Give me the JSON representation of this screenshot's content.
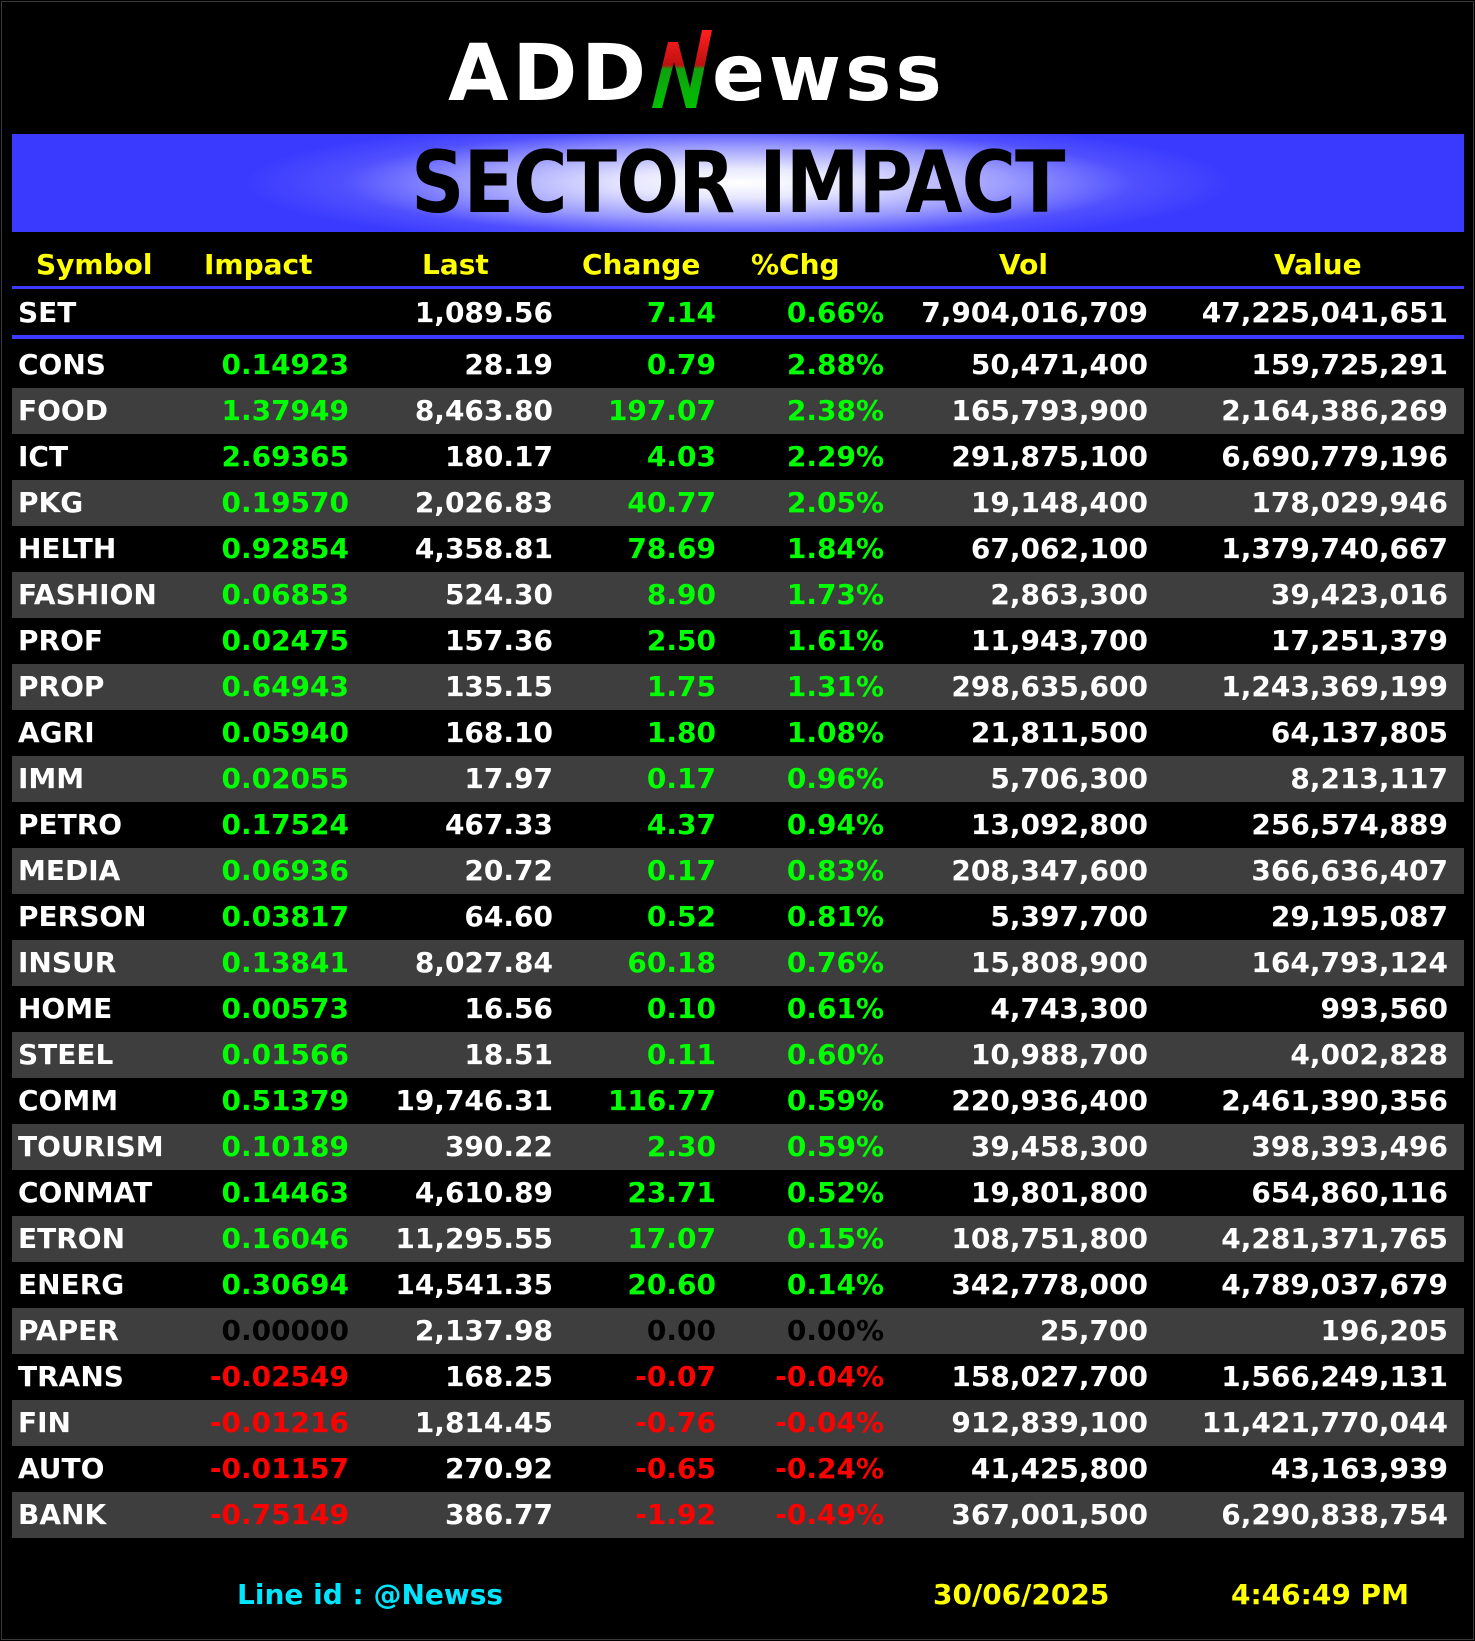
{
  "logo": {
    "text_left": "ADD",
    "text_right": "ewss"
  },
  "banner": {
    "title": "SECTOR IMPACT"
  },
  "header": {
    "symbol": "Symbol",
    "impact": "Impact",
    "last": "Last",
    "change": "Change",
    "pct": "%Chg",
    "vol": "Vol",
    "value": "Value"
  },
  "set_row": {
    "symbol": "SET",
    "impact": "",
    "last": "1,089.56",
    "change": "7.14",
    "pct": "0.66%",
    "vol": "7,904,016,709",
    "value": "47,225,041,651",
    "direction": "pos"
  },
  "rows": [
    {
      "symbol": "CONS",
      "impact": "0.14923",
      "last": "28.19",
      "change": "0.79",
      "pct": "2.88%",
      "vol": "50,471,400",
      "value": "159,725,291",
      "direction": "pos"
    },
    {
      "symbol": "FOOD",
      "impact": "1.37949",
      "last": "8,463.80",
      "change": "197.07",
      "pct": "2.38%",
      "vol": "165,793,900",
      "value": "2,164,386,269",
      "direction": "pos"
    },
    {
      "symbol": "ICT",
      "impact": "2.69365",
      "last": "180.17",
      "change": "4.03",
      "pct": "2.29%",
      "vol": "291,875,100",
      "value": "6,690,779,196",
      "direction": "pos"
    },
    {
      "symbol": "PKG",
      "impact": "0.19570",
      "last": "2,026.83",
      "change": "40.77",
      "pct": "2.05%",
      "vol": "19,148,400",
      "value": "178,029,946",
      "direction": "pos"
    },
    {
      "symbol": "HELTH",
      "impact": "0.92854",
      "last": "4,358.81",
      "change": "78.69",
      "pct": "1.84%",
      "vol": "67,062,100",
      "value": "1,379,740,667",
      "direction": "pos"
    },
    {
      "symbol": "FASHION",
      "impact": "0.06853",
      "last": "524.30",
      "change": "8.90",
      "pct": "1.73%",
      "vol": "2,863,300",
      "value": "39,423,016",
      "direction": "pos"
    },
    {
      "symbol": "PROF",
      "impact": "0.02475",
      "last": "157.36",
      "change": "2.50",
      "pct": "1.61%",
      "vol": "11,943,700",
      "value": "17,251,379",
      "direction": "pos"
    },
    {
      "symbol": "PROP",
      "impact": "0.64943",
      "last": "135.15",
      "change": "1.75",
      "pct": "1.31%",
      "vol": "298,635,600",
      "value": "1,243,369,199",
      "direction": "pos"
    },
    {
      "symbol": "AGRI",
      "impact": "0.05940",
      "last": "168.10",
      "change": "1.80",
      "pct": "1.08%",
      "vol": "21,811,500",
      "value": "64,137,805",
      "direction": "pos"
    },
    {
      "symbol": "IMM",
      "impact": "0.02055",
      "last": "17.97",
      "change": "0.17",
      "pct": "0.96%",
      "vol": "5,706,300",
      "value": "8,213,117",
      "direction": "pos"
    },
    {
      "symbol": "PETRO",
      "impact": "0.17524",
      "last": "467.33",
      "change": "4.37",
      "pct": "0.94%",
      "vol": "13,092,800",
      "value": "256,574,889",
      "direction": "pos"
    },
    {
      "symbol": "MEDIA",
      "impact": "0.06936",
      "last": "20.72",
      "change": "0.17",
      "pct": "0.83%",
      "vol": "208,347,600",
      "value": "366,636,407",
      "direction": "pos"
    },
    {
      "symbol": "PERSON",
      "impact": "0.03817",
      "last": "64.60",
      "change": "0.52",
      "pct": "0.81%",
      "vol": "5,397,700",
      "value": "29,195,087",
      "direction": "pos"
    },
    {
      "symbol": "INSUR",
      "impact": "0.13841",
      "last": "8,027.84",
      "change": "60.18",
      "pct": "0.76%",
      "vol": "15,808,900",
      "value": "164,793,124",
      "direction": "pos"
    },
    {
      "symbol": "HOME",
      "impact": "0.00573",
      "last": "16.56",
      "change": "0.10",
      "pct": "0.61%",
      "vol": "4,743,300",
      "value": "993,560",
      "direction": "pos"
    },
    {
      "symbol": "STEEL",
      "impact": "0.01566",
      "last": "18.51",
      "change": "0.11",
      "pct": "0.60%",
      "vol": "10,988,700",
      "value": "4,002,828",
      "direction": "pos"
    },
    {
      "symbol": "COMM",
      "impact": "0.51379",
      "last": "19,746.31",
      "change": "116.77",
      "pct": "0.59%",
      "vol": "220,936,400",
      "value": "2,461,390,356",
      "direction": "pos"
    },
    {
      "symbol": "TOURISM",
      "impact": "0.10189",
      "last": "390.22",
      "change": "2.30",
      "pct": "0.59%",
      "vol": "39,458,300",
      "value": "398,393,496",
      "direction": "pos"
    },
    {
      "symbol": "CONMAT",
      "impact": "0.14463",
      "last": "4,610.89",
      "change": "23.71",
      "pct": "0.52%",
      "vol": "19,801,800",
      "value": "654,860,116",
      "direction": "pos"
    },
    {
      "symbol": "ETRON",
      "impact": "0.16046",
      "last": "11,295.55",
      "change": "17.07",
      "pct": "0.15%",
      "vol": "108,751,800",
      "value": "4,281,371,765",
      "direction": "pos"
    },
    {
      "symbol": "ENERG",
      "impact": "0.30694",
      "last": "14,541.35",
      "change": "20.60",
      "pct": "0.14%",
      "vol": "342,778,000",
      "value": "4,789,037,679",
      "direction": "pos"
    },
    {
      "symbol": "PAPER",
      "impact": "0.00000",
      "last": "2,137.98",
      "change": "0.00",
      "pct": "0.00%",
      "vol": "25,700",
      "value": "196,205",
      "direction": "zero"
    },
    {
      "symbol": "TRANS",
      "impact": "-0.02549",
      "last": "168.25",
      "change": "-0.07",
      "pct": "-0.04%",
      "vol": "158,027,700",
      "value": "1,566,249,131",
      "direction": "neg"
    },
    {
      "symbol": "FIN",
      "impact": "-0.01216",
      "last": "1,814.45",
      "change": "-0.76",
      "pct": "-0.04%",
      "vol": "912,839,100",
      "value": "11,421,770,044",
      "direction": "neg"
    },
    {
      "symbol": "AUTO",
      "impact": "-0.01157",
      "last": "270.92",
      "change": "-0.65",
      "pct": "-0.24%",
      "vol": "41,425,800",
      "value": "43,163,939",
      "direction": "neg"
    },
    {
      "symbol": "BANK",
      "impact": "-0.75149",
      "last": "386.77",
      "change": "-1.92",
      "pct": "-0.49%",
      "vol": "367,001,500",
      "value": "6,290,838,754",
      "direction": "neg"
    }
  ],
  "footer": {
    "line_id": "Line id  : @Newss",
    "date": "30/06/2025",
    "time": "4:46:49 PM"
  },
  "colors": {
    "positive": "#00ff00",
    "negative": "#ff0000",
    "zero": "#000000",
    "header": "#ffff00",
    "accent": "#3b3bff"
  }
}
